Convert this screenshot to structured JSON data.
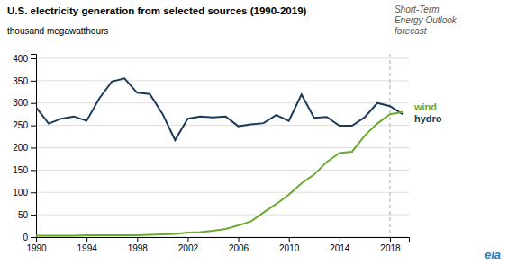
{
  "chart_data": {
    "type": "line",
    "title": "U.S. electricity generation from selected sources (1990-2019)",
    "ylabel": "thousand megawatthours",
    "x": [
      1990,
      1991,
      1992,
      1993,
      1994,
      1995,
      1996,
      1997,
      1998,
      1999,
      2000,
      2001,
      2002,
      2003,
      2004,
      2005,
      2006,
      2007,
      2008,
      2009,
      2010,
      2011,
      2012,
      2013,
      2014,
      2015,
      2016,
      2017,
      2018,
      2019
    ],
    "series": [
      {
        "name": "hydro",
        "color": "#1b3a5c",
        "values": [
          290,
          254,
          265,
          270,
          260,
          310,
          348,
          355,
          323,
          320,
          276,
          217,
          265,
          270,
          268,
          270,
          248,
          252,
          255,
          273,
          260,
          319,
          267,
          269,
          249,
          249,
          268,
          300,
          293,
          275
        ]
      },
      {
        "name": "wind",
        "color": "#6aaa2e",
        "values": [
          3,
          3,
          3,
          3,
          4,
          4,
          4,
          4,
          4,
          5,
          6,
          7,
          10,
          11,
          14,
          18,
          26,
          35,
          55,
          74,
          95,
          120,
          140,
          168,
          188,
          191,
          227,
          254,
          275,
          280
        ]
      }
    ],
    "xlim": [
      1990,
      2019.5
    ],
    "xticks": [
      1990,
      1994,
      1998,
      2002,
      2006,
      2010,
      2014,
      2018
    ],
    "ylim": [
      0,
      410
    ],
    "yticks": [
      0,
      50,
      100,
      150,
      200,
      250,
      300,
      350,
      400
    ],
    "grid": true,
    "annotations": [
      {
        "text": "Short-Term\nEnergy Outlook\nforecast",
        "x": 2018
      },
      {
        "text": "eia"
      }
    ]
  }
}
